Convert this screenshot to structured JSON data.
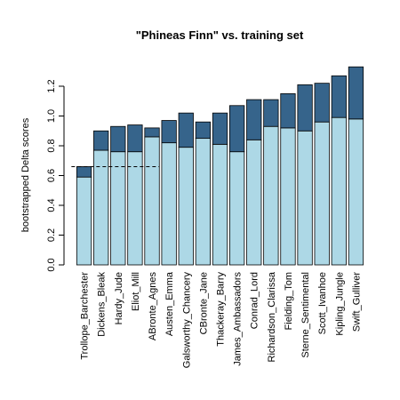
{
  "chart_data": {
    "type": "bar",
    "stacked": true,
    "title": "\"Phineas Finn\" vs. training set",
    "xlabel": "",
    "ylabel": "bootstrapped Delta scores",
    "ylim": [
      0,
      1.3
    ],
    "yticks": [
      "0.0",
      "0.2",
      "0.4",
      "0.6",
      "0.8",
      "1.0",
      "1.2"
    ],
    "grid": false,
    "legend": "none",
    "categories": [
      "Trollope_Barchester",
      "Dickens_Bleak",
      "Hardy_Jude",
      "Eliot_Mill",
      "ABronte_Agnes",
      "Austen_Emma",
      "Galsworthy_Chancery",
      "CBronte_Jane",
      "Thackeray_Barry",
      "James_Ambassadors",
      "Conrad_Lord",
      "Richardson_Clarissa",
      "Fielding_Tom",
      "Sterne_Sentimental",
      "Scott_Ivanhoe",
      "Kipling_Jungle",
      "Swift_Gulliver"
    ],
    "series": [
      {
        "values": [
          0.59,
          0.77,
          0.76,
          0.76,
          0.86,
          0.82,
          0.79,
          0.85,
          0.81,
          0.76,
          0.84,
          0.93,
          0.92,
          0.9,
          0.96,
          0.99,
          0.98
        ]
      },
      {
        "values": [
          0.07,
          0.13,
          0.17,
          0.18,
          0.06,
          0.15,
          0.23,
          0.11,
          0.21,
          0.31,
          0.27,
          0.18,
          0.23,
          0.31,
          0.26,
          0.28,
          0.35
        ]
      }
    ],
    "reference_line": {
      "y": 0.66,
      "x_from": "Trollope_Barchester",
      "x_to": "ABronte_Agnes",
      "style": "dashed"
    },
    "colors": {
      "lower": "#add8e6",
      "upper": "#36648b",
      "border": "#000000"
    }
  }
}
